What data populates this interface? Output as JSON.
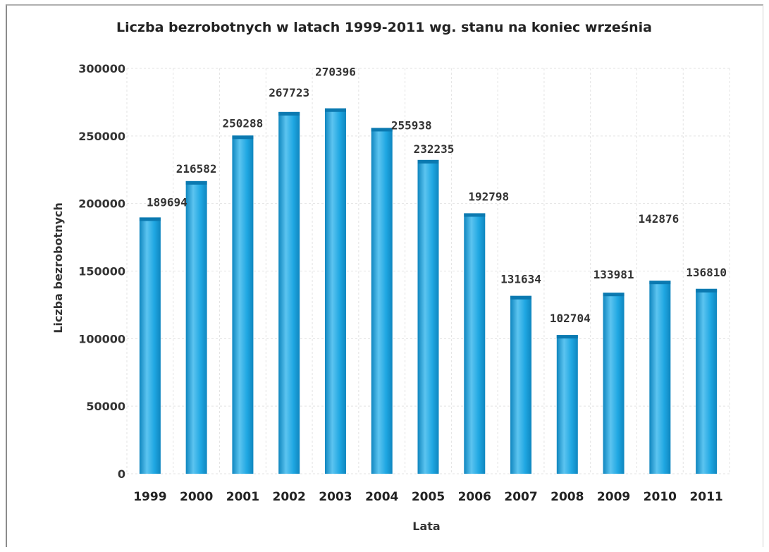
{
  "chart_data": {
    "type": "bar",
    "title": "Liczba bezrobotnych  w latach 1999-2011 wg. stanu na koniec  września",
    "xlabel": "Lata",
    "ylabel": "Liczba bezrobotnych",
    "categories": [
      "1999",
      "2000",
      "2001",
      "2002",
      "2003",
      "2004",
      "2005",
      "2006",
      "2007",
      "2008",
      "2009",
      "2010",
      "2011"
    ],
    "values": [
      189694,
      216582,
      250288,
      267723,
      270396,
      255938,
      232235,
      192798,
      131634,
      102704,
      133981,
      142876,
      136810
    ],
    "data_labels": [
      "189694",
      "216582",
      "250288",
      "267723",
      "270396",
      "255938",
      "232235",
      "192798",
      "131634",
      "102704",
      "133981",
      "142876",
      "136810"
    ],
    "ylim": [
      0,
      300000
    ],
    "yticks": [
      0,
      50000,
      100000,
      150000,
      200000,
      250000,
      300000
    ],
    "ytick_labels": [
      "0",
      "50000",
      "100000",
      "150000",
      "200000",
      "250000",
      "300000"
    ],
    "grid": true,
    "legend": "none",
    "colors": {
      "bar": "#1fa7e2",
      "bar_light": "#5cc4f0",
      "bar_dark": "#0f86bf",
      "bar_top": "#0b79b0",
      "text": "#222222"
    }
  }
}
